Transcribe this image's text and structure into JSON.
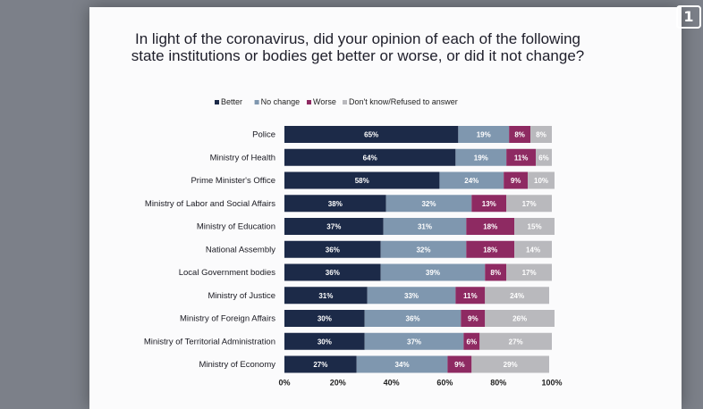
{
  "logo_text": "1",
  "chart_data": {
    "type": "bar",
    "orientation": "horizontal",
    "stacked": true,
    "title": "In light of the coronavirus, did your opinion of each of the following state institutions or bodies get better or worse, or did it not change?",
    "categories": [
      "Police",
      "Ministry of Health",
      "Prime Minister's Office",
      "Ministry of Labor and Social Affairs",
      "Ministry of Education",
      "National Assembly",
      "Local Government bodies",
      "Ministry of Justice",
      "Ministry of Foreign Affairs",
      "Ministry of Territorial Administration",
      "Ministry of Economy"
    ],
    "series": [
      {
        "name": "Better",
        "color": "#1c2a48",
        "label_color": "#ffffff",
        "values": [
          65,
          64,
          58,
          38,
          37,
          36,
          36,
          31,
          30,
          30,
          27
        ]
      },
      {
        "name": "No change",
        "color": "#7f97af",
        "label_color": "#ffffff",
        "values": [
          19,
          19,
          24,
          32,
          31,
          32,
          39,
          33,
          36,
          37,
          34
        ]
      },
      {
        "name": "Worse",
        "color": "#8e2a62",
        "label_color": "#ffffff",
        "values": [
          8,
          11,
          9,
          13,
          18,
          18,
          8,
          11,
          9,
          6,
          9
        ]
      },
      {
        "name": "Don't know/Refused to answer",
        "color": "#b9b9bd",
        "label_color": "#ffffff",
        "values": [
          8,
          6,
          10,
          17,
          15,
          14,
          17,
          24,
          26,
          27,
          29
        ]
      }
    ],
    "value_suffix": "%",
    "xlim": [
      0,
      100
    ],
    "xticks": [
      0,
      20,
      40,
      60,
      80,
      100
    ],
    "xtick_labels": [
      "0%",
      "20%",
      "40%",
      "60%",
      "80%",
      "100%"
    ],
    "legend_position": "top",
    "xlabel": "",
    "ylabel": ""
  }
}
